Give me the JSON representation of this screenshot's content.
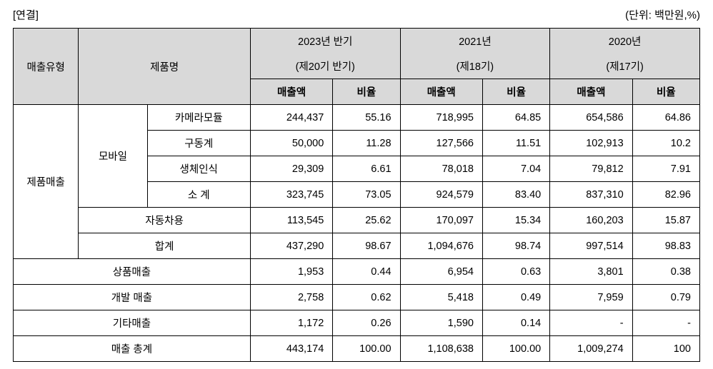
{
  "header": {
    "left": "[연결]",
    "right": "(단위: 백만원,%)"
  },
  "columns": {
    "type": "매출유형",
    "product": "제품명",
    "periods": [
      {
        "title_line1": "2023년 반기",
        "title_line2": "(제20기 반기)",
        "sales": "매출액",
        "ratio": "비율"
      },
      {
        "title_line1": "2021년",
        "title_line2": "(제18기)",
        "sales": "매출액",
        "ratio": "비율"
      },
      {
        "title_line1": "2020년",
        "title_line2": "(제17기)",
        "sales": "매출액",
        "ratio": "비율"
      }
    ]
  },
  "product_sales_label": "제품매출",
  "mobile_label": "모바일",
  "rows": {
    "camera": {
      "label": "카메라모듈",
      "v": [
        "244,437",
        "55.16",
        "718,995",
        "64.85",
        "654,586",
        "64.86"
      ]
    },
    "drive": {
      "label": "구동계",
      "v": [
        "50,000",
        "11.28",
        "127,566",
        "11.51",
        "102,913",
        "10.2"
      ]
    },
    "biometric": {
      "label": "생체인식",
      "v": [
        "29,309",
        "6.61",
        "78,018",
        "7.04",
        "79,812",
        "7.91"
      ]
    },
    "subtotal": {
      "label": "소 계",
      "v": [
        "323,745",
        "73.05",
        "924,579",
        "83.40",
        "837,310",
        "82.96"
      ]
    },
    "automotive": {
      "label": "자동차용",
      "v": [
        "113,545",
        "25.62",
        "170,097",
        "15.34",
        "160,203",
        "15.87"
      ]
    },
    "total": {
      "label": "합계",
      "v": [
        "437,290",
        "98.67",
        "1,094,676",
        "98.74",
        "997,514",
        "98.83"
      ]
    },
    "goods": {
      "label": "상품매출",
      "v": [
        "1,953",
        "0.44",
        "6,954",
        "0.63",
        "3,801",
        "0.38"
      ]
    },
    "dev": {
      "label": "개발 매출",
      "v": [
        "2,758",
        "0.62",
        "5,418",
        "0.49",
        "7,959",
        "0.79"
      ]
    },
    "other": {
      "label": "기타매출",
      "v": [
        "1,172",
        "0.26",
        "1,590",
        "0.14",
        "-",
        "-"
      ]
    },
    "grand": {
      "label": "매출 총계",
      "v": [
        "443,174",
        "100.00",
        "1,108,638",
        "100.00",
        "1,009,274",
        "100"
      ]
    }
  },
  "style": {
    "header_bg": "#d9d9d9",
    "border_color": "#000000",
    "bg_color": "#ffffff",
    "font_size_pt": 11
  }
}
